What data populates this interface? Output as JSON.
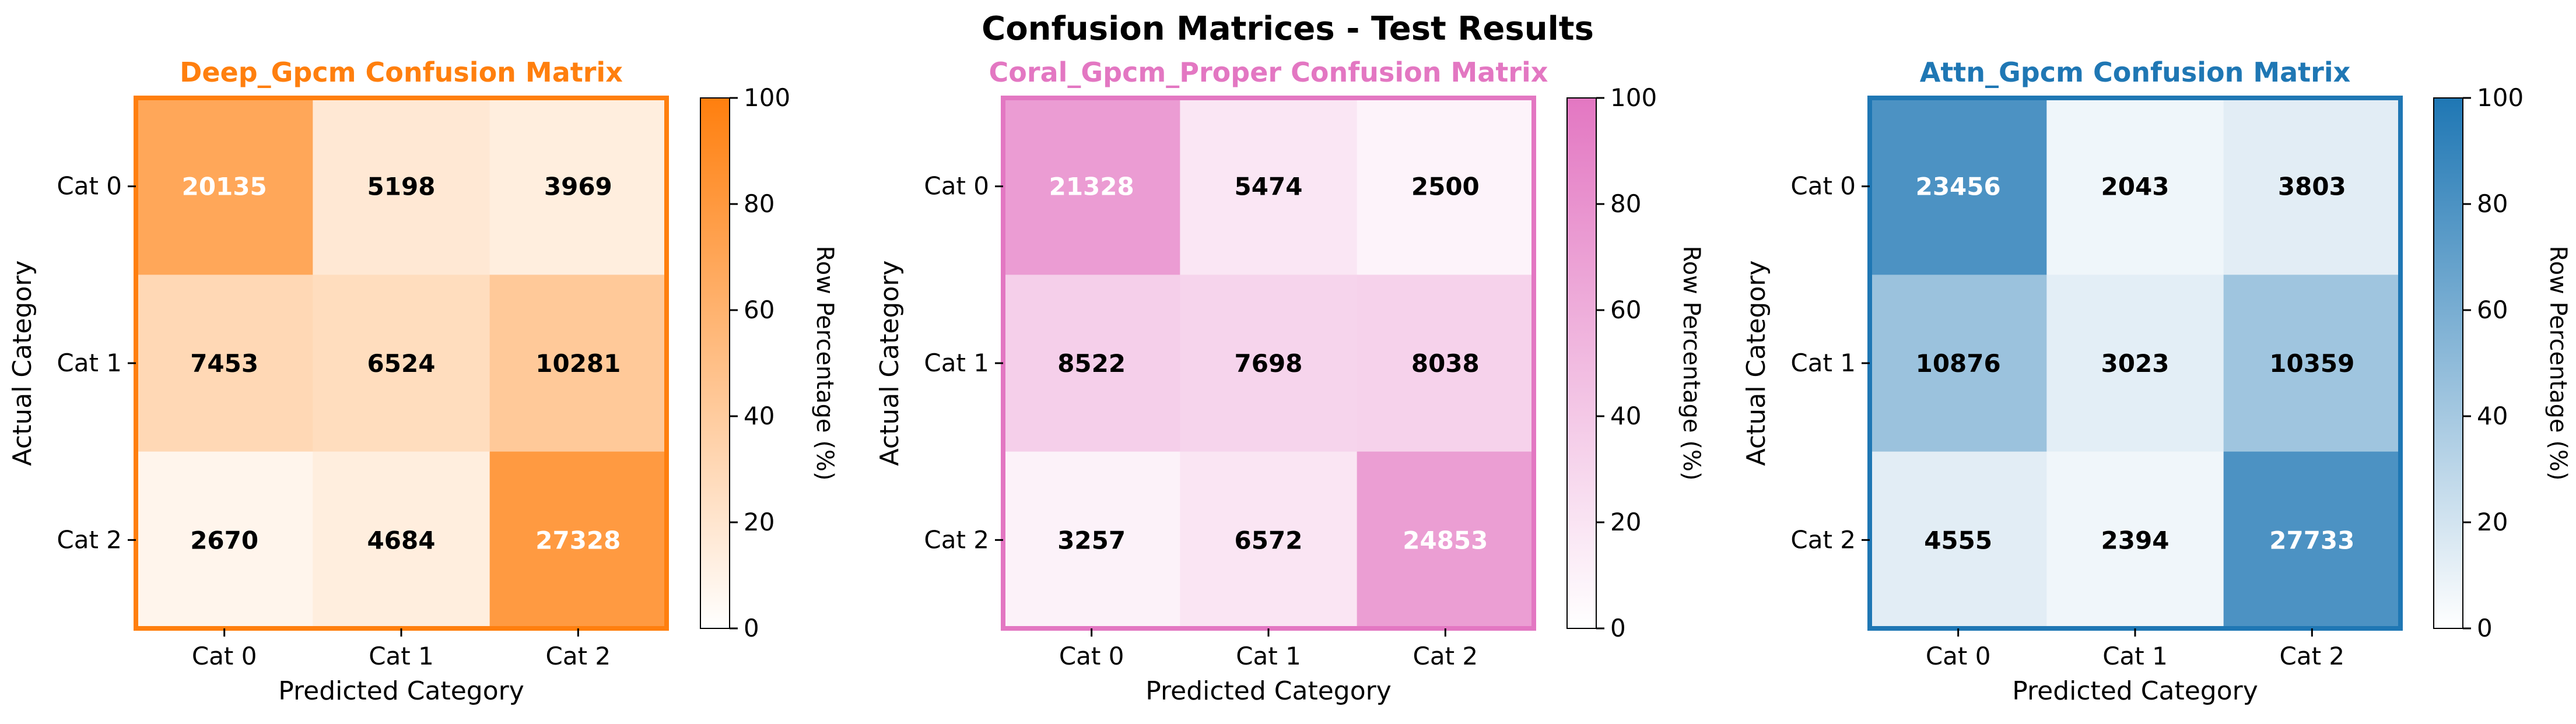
{
  "figure": {
    "title": "Confusion Matrices - Test Results"
  },
  "chart_data": [
    {
      "type": "heatmap",
      "title": "Deep_Gpcm Confusion Matrix",
      "xlabel": "Predicted Category",
      "ylabel": "Actual Category",
      "x_categories": [
        "Cat 0",
        "Cat 1",
        "Cat 2"
      ],
      "y_categories": [
        "Cat 0",
        "Cat 1",
        "Cat 2"
      ],
      "values": [
        [
          20135,
          5198,
          3969
        ],
        [
          7453,
          6524,
          10281
        ],
        [
          2670,
          4684,
          27328
        ]
      ],
      "color_scale": "row percentage",
      "colorbar": {
        "label": "Row Percentage (%)",
        "range": [
          0,
          100
        ],
        "ticks": [
          "0",
          "20",
          "40",
          "60",
          "80",
          "100"
        ]
      },
      "accent_color": "#ff7f0e"
    },
    {
      "type": "heatmap",
      "title": "Coral_Gpcm_Proper Confusion Matrix",
      "xlabel": "Predicted Category",
      "ylabel": "Actual Category",
      "x_categories": [
        "Cat 0",
        "Cat 1",
        "Cat 2"
      ],
      "y_categories": [
        "Cat 0",
        "Cat 1",
        "Cat 2"
      ],
      "values": [
        [
          21328,
          5474,
          2500
        ],
        [
          8522,
          7698,
          8038
        ],
        [
          3257,
          6572,
          24853
        ]
      ],
      "color_scale": "row percentage",
      "colorbar": {
        "label": "Row Percentage (%)",
        "range": [
          0,
          100
        ],
        "ticks": [
          "0",
          "20",
          "40",
          "60",
          "80",
          "100"
        ]
      },
      "accent_color": "#e377c2"
    },
    {
      "type": "heatmap",
      "title": "Attn_Gpcm Confusion Matrix",
      "xlabel": "Predicted Category",
      "ylabel": "Actual Category",
      "x_categories": [
        "Cat 0",
        "Cat 1",
        "Cat 2"
      ],
      "y_categories": [
        "Cat 0",
        "Cat 1",
        "Cat 2"
      ],
      "values": [
        [
          23456,
          2043,
          3803
        ],
        [
          10876,
          3023,
          10359
        ],
        [
          4555,
          2394,
          27733
        ]
      ],
      "color_scale": "row percentage",
      "colorbar": {
        "label": "Row Percentage (%)",
        "range": [
          0,
          100
        ],
        "ticks": [
          "0",
          "20",
          "40",
          "60",
          "80",
          "100"
        ]
      },
      "accent_color": "#1f77b4"
    }
  ]
}
